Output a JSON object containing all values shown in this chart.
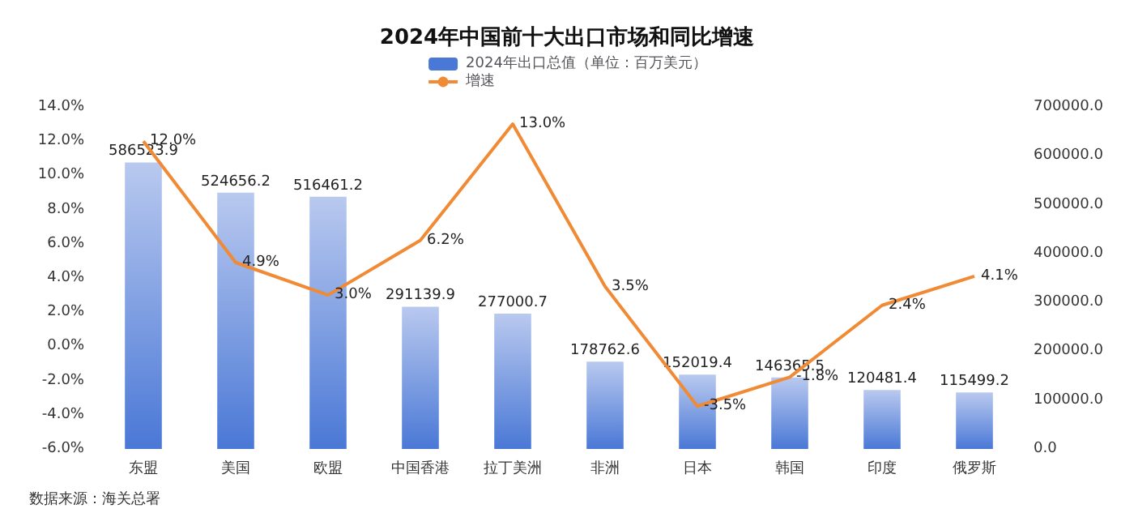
{
  "chart_data": {
    "type": "bar",
    "title": "2024年中国前十大出口市场和同比增速",
    "categories": [
      "东盟",
      "美国",
      "欧盟",
      "中国香港",
      "拉丁美洲",
      "非洲",
      "日本",
      "韩国",
      "印度",
      "俄罗斯"
    ],
    "series": [
      {
        "name": "2024年出口总值（单位：百万美元）",
        "axis": "y2",
        "color": "#4a78d6",
        "values": [
          586523.9,
          524656.2,
          516461.2,
          291139.9,
          277000.7,
          178762.6,
          152019.4,
          146365.5,
          120481.4,
          115499.2
        ],
        "value_labels": [
          "586523.9",
          "524656.2",
          "516461.2",
          "291139.9",
          "277000.7",
          "178762.6",
          "152019.4",
          "146365.5",
          "120481.4",
          "115499.2"
        ]
      },
      {
        "name": "增速",
        "type": "line",
        "color": "#f08a35",
        "values": [
          12.0,
          4.9,
          3.0,
          6.2,
          13.0,
          3.5,
          -3.5,
          -1.8,
          2.4,
          4.1
        ],
        "value_labels": [
          "12.0%",
          "4.9%",
          "3.0%",
          "6.2%",
          "13.0%",
          "3.5%",
          "-3.5%",
          "-1.8%",
          "2.4%",
          "4.1%"
        ]
      }
    ],
    "ylim": [
      -6,
      14
    ],
    "yticks": [
      {
        "value": -6,
        "label": "-6.0%"
      },
      {
        "value": -4,
        "label": "-4.0%"
      },
      {
        "value": -2,
        "label": "-2.0%"
      },
      {
        "value": 0,
        "label": "0.0%"
      },
      {
        "value": 2,
        "label": "2.0%"
      },
      {
        "value": 4,
        "label": "4.0%"
      },
      {
        "value": 6,
        "label": "6.0%"
      },
      {
        "value": 8,
        "label": "8.0%"
      },
      {
        "value": 10,
        "label": "10.0%"
      },
      {
        "value": 12,
        "label": "12.0%"
      },
      {
        "value": 14,
        "label": "14.0%"
      }
    ],
    "y2lim": [
      0,
      700000
    ],
    "y2ticks": [
      {
        "value": 0,
        "label": "0.0"
      },
      {
        "value": 100000,
        "label": "100000.0"
      },
      {
        "value": 200000,
        "label": "200000.0"
      },
      {
        "value": 300000,
        "label": "300000.0"
      },
      {
        "value": 400000,
        "label": "400000.0"
      },
      {
        "value": 500000,
        "label": "500000.0"
      },
      {
        "value": 600000,
        "label": "600000.0"
      },
      {
        "value": 700000,
        "label": "700000.0"
      }
    ],
    "legend": "top",
    "marker": "none",
    "line_style": "solid",
    "annotations": [
      "数据来源：海关总署"
    ]
  }
}
